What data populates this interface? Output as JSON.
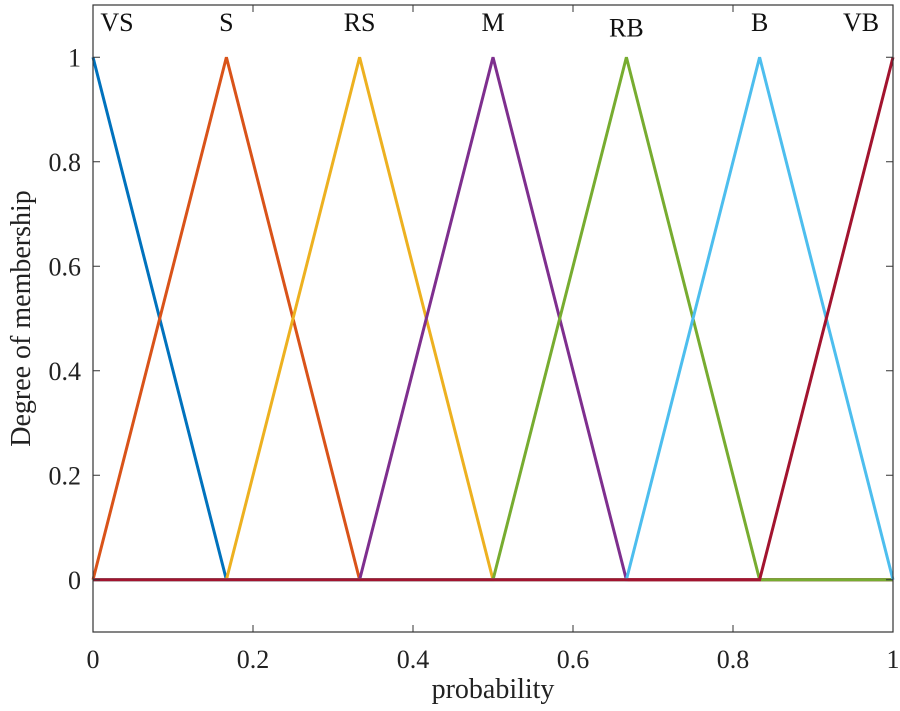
{
  "chart_data": {
    "type": "line",
    "title": "",
    "xlabel": "probability",
    "ylabel": "Degree of membership",
    "xlim": [
      0,
      1
    ],
    "ylim": [
      -0.1,
      1.1
    ],
    "xticks": [
      0,
      0.2,
      0.4,
      0.6,
      0.8,
      1
    ],
    "xtick_labels": [
      "0",
      "0.2",
      "0.4",
      "0.6",
      "0.8",
      "1"
    ],
    "yticks": [
      0,
      0.2,
      0.4,
      0.6,
      0.8,
      1
    ],
    "ytick_labels": [
      "0",
      "0.2",
      "0.4",
      "0.6",
      "0.8",
      "1"
    ],
    "grid": false,
    "series": [
      {
        "name": "VS",
        "color": "#0072BD",
        "x": [
          0,
          0.1667,
          1
        ],
        "y": [
          1,
          0,
          0
        ]
      },
      {
        "name": "S",
        "color": "#D95319",
        "x": [
          0,
          0.1667,
          0.3333,
          1
        ],
        "y": [
          0,
          1,
          0,
          0
        ]
      },
      {
        "name": "RS",
        "color": "#EDB120",
        "x": [
          0,
          0.1667,
          0.3333,
          0.5,
          1
        ],
        "y": [
          0,
          0,
          1,
          0,
          0
        ]
      },
      {
        "name": "M",
        "color": "#7E2F8E",
        "x": [
          0,
          0.3333,
          0.5,
          0.6667,
          1
        ],
        "y": [
          0,
          0,
          1,
          0,
          0
        ]
      },
      {
        "name": "RB",
        "color": "#77AC30",
        "x": [
          0,
          0.5,
          0.6667,
          0.8333,
          1
        ],
        "y": [
          0,
          0,
          1,
          0,
          0
        ]
      },
      {
        "name": "B",
        "color": "#4DBEEE",
        "x": [
          0,
          0.6667,
          0.8333,
          1
        ],
        "y": [
          0,
          0,
          1,
          0
        ]
      },
      {
        "name": "VB",
        "color": "#A2142F",
        "x": [
          0,
          0.8333,
          1
        ],
        "y": [
          0,
          0,
          1
        ]
      }
    ],
    "annotations": [
      {
        "text": "VS",
        "x": 0.03,
        "y": 1.05
      },
      {
        "text": "S",
        "x": 0.1667,
        "y": 1.05
      },
      {
        "text": "RS",
        "x": 0.3333,
        "y": 1.05
      },
      {
        "text": "M",
        "x": 0.5,
        "y": 1.05
      },
      {
        "text": "RB",
        "x": 0.6667,
        "y": 1.04
      },
      {
        "text": "B",
        "x": 0.8333,
        "y": 1.05
      },
      {
        "text": "VB",
        "x": 0.96,
        "y": 1.05
      }
    ]
  }
}
